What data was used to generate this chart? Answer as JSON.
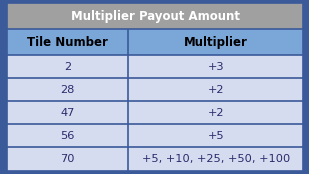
{
  "title": "Multiplier Payout Amount",
  "col_headers": [
    "Tile Number",
    "Multiplier"
  ],
  "rows": [
    [
      "2",
      "+3"
    ],
    [
      "28",
      "+2"
    ],
    [
      "47",
      "+2"
    ],
    [
      "56",
      "+5"
    ],
    [
      "70",
      "+5, +10, +25, +50, +100"
    ]
  ],
  "title_bg": "#A0A0A0",
  "header_bg": "#7BA7D8",
  "row_bg": "#D6DCF0",
  "border_color": "#3A5A9A",
  "title_text_color": "#FFFFFF",
  "header_text_color": "#000000",
  "row_text_color": "#2B2B6B",
  "title_fontsize": 8.5,
  "header_fontsize": 8.5,
  "row_fontsize": 8.2,
  "col_split": 0.415,
  "fig_bg": "#3A5A9A"
}
